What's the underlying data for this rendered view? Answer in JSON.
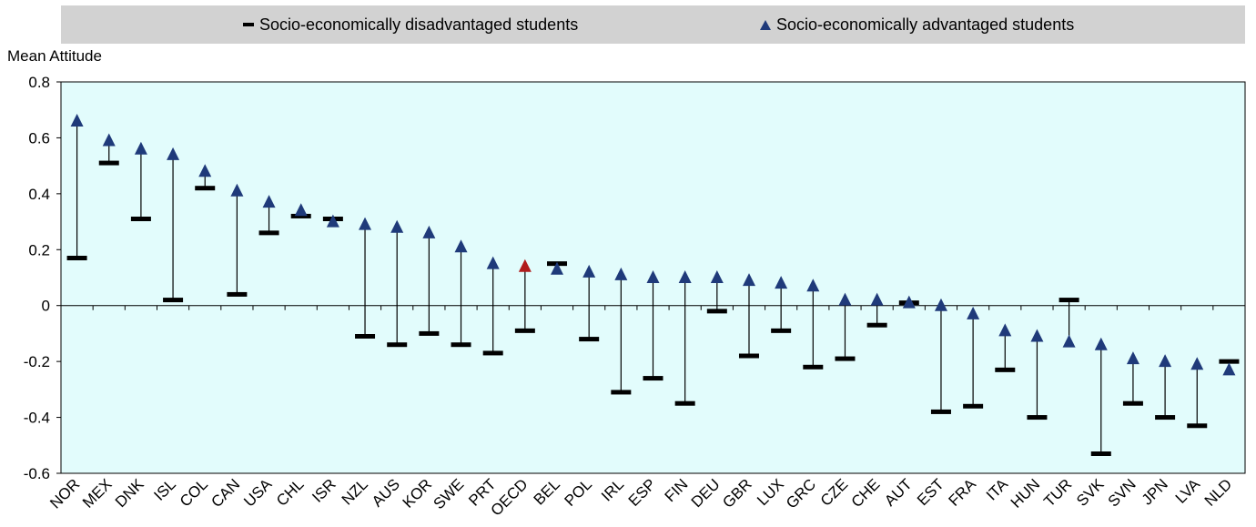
{
  "legend": {
    "disadvantaged": "Socio-economically disadvantaged students",
    "advantaged": "Socio-economically advantaged students"
  },
  "colors": {
    "plot_bg": "#e2fcfc",
    "advantaged_marker": "#1f3a7a",
    "oecd_marker": "#b01c1c",
    "disadvantaged_marker": "#000000"
  },
  "chart_data": {
    "type": "dot",
    "ylabel": "Mean Attitude",
    "ylim": [
      -0.6,
      0.8
    ],
    "yticks": [
      -0.6,
      -0.4,
      -0.2,
      0,
      0.2,
      0.4,
      0.6,
      0.8
    ],
    "ytick_labels": [
      "-0.6",
      "-0.4",
      "-0.2",
      "0",
      "0.2",
      "0.4",
      "0.6",
      "0.8"
    ],
    "categories": [
      "NOR",
      "MEX",
      "DNK",
      "ISL",
      "COL",
      "CAN",
      "USA",
      "CHL",
      "ISR",
      "NZL",
      "AUS",
      "KOR",
      "SWE",
      "PRT",
      "OECD",
      "BEL",
      "POL",
      "IRL",
      "ESP",
      "FIN",
      "DEU",
      "GBR",
      "LUX",
      "GRC",
      "CZE",
      "CHE",
      "AUT",
      "EST",
      "FRA",
      "ITA",
      "HUN",
      "TUR",
      "SVK",
      "SVN",
      "JPN",
      "LVA",
      "NLD"
    ],
    "series": [
      {
        "name": "Socio-economically disadvantaged students",
        "values": [
          0.17,
          0.51,
          0.31,
          0.02,
          0.42,
          0.04,
          0.26,
          0.32,
          0.31,
          -0.11,
          -0.14,
          -0.1,
          -0.14,
          -0.17,
          -0.09,
          0.15,
          -0.12,
          -0.31,
          -0.26,
          -0.35,
          -0.02,
          -0.18,
          -0.09,
          -0.22,
          -0.19,
          -0.07,
          0.01,
          -0.38,
          -0.36,
          -0.23,
          -0.4,
          0.02,
          -0.53,
          -0.35,
          -0.4,
          -0.43,
          -0.2
        ]
      },
      {
        "name": "Socio-economically advantaged students",
        "values": [
          0.66,
          0.59,
          0.56,
          0.54,
          0.48,
          0.41,
          0.37,
          0.34,
          0.3,
          0.29,
          0.28,
          0.26,
          0.21,
          0.15,
          0.14,
          0.13,
          0.12,
          0.11,
          0.1,
          0.1,
          0.1,
          0.09,
          0.08,
          0.07,
          0.02,
          0.02,
          0.01,
          0.0,
          -0.03,
          -0.09,
          -0.11,
          -0.13,
          -0.14,
          -0.19,
          -0.2,
          -0.21,
          -0.23
        ]
      }
    ],
    "highlight_category": "OECD",
    "grid": false
  }
}
